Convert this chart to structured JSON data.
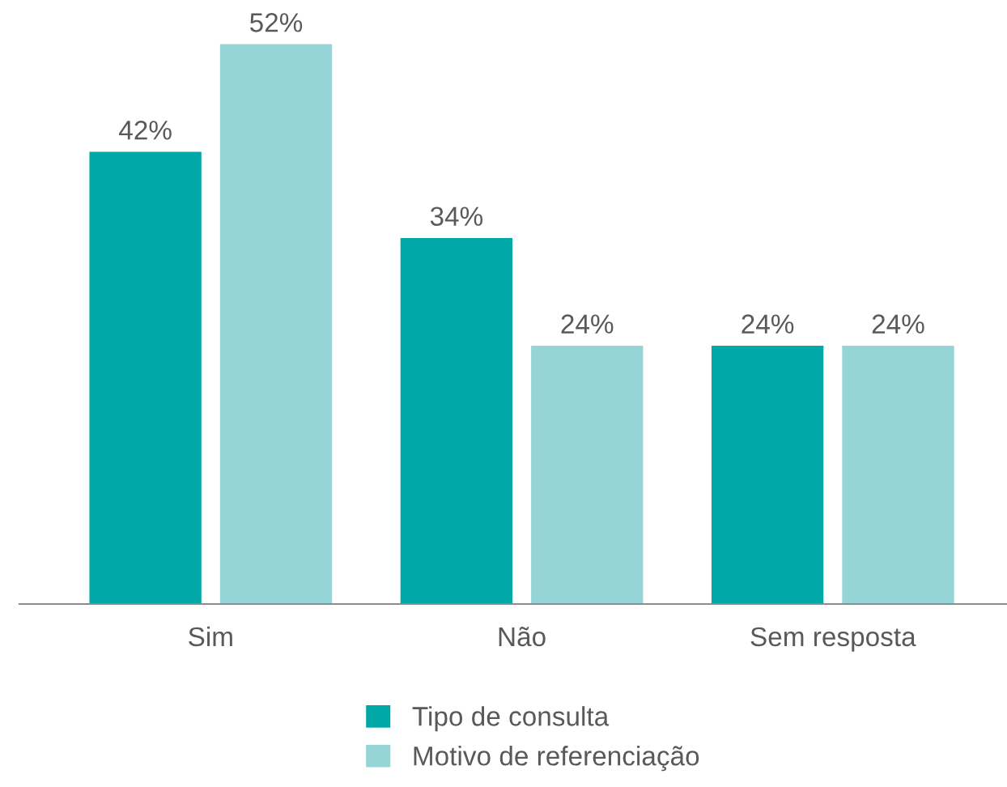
{
  "chart_data": {
    "type": "bar",
    "categories": [
      "Sim",
      "Não",
      "Sem resposta"
    ],
    "legend": "bottom",
    "series": [
      {
        "name": "Tipo de consulta",
        "color": "#00a8a8",
        "values": [
          42,
          34,
          24
        ],
        "value_labels": [
          "42%",
          "34%",
          "24%"
        ]
      },
      {
        "name": "Motivo de referenciação",
        "color": "#96d5d7",
        "values": [
          52,
          24,
          24
        ],
        "value_labels": [
          "52%",
          "24%",
          "24%"
        ]
      }
    ]
  }
}
